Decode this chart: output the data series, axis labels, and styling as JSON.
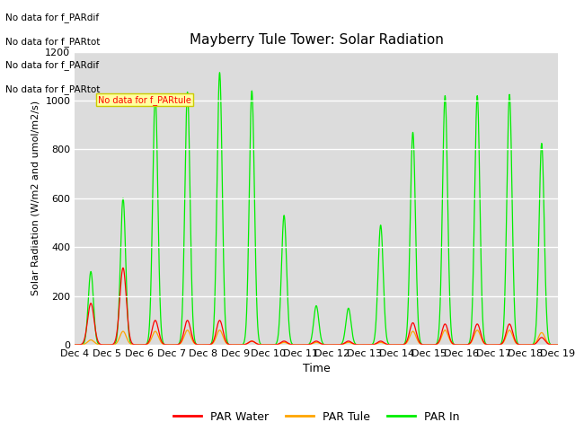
{
  "title": "Mayberry Tule Tower: Solar Radiation",
  "ylabel": "Solar Radiation (W/m2 and umol/m2/s)",
  "xlabel": "Time",
  "ylim": [
    0,
    1200
  ],
  "yticks": [
    0,
    200,
    400,
    600,
    800,
    1000,
    1200
  ],
  "background_color": "#dcdcdc",
  "no_data_texts": [
    "No data for f_PARdif",
    "No data for f_PARtot",
    "No data for f_PARdif",
    "No data for f_PARtot"
  ],
  "tooltip_text": "No data for f_PARtule",
  "legend_entries": [
    "PAR Water",
    "PAR Tule",
    "PAR In"
  ],
  "legend_colors": [
    "#ff0000",
    "#ffa500",
    "#00ee00"
  ],
  "x_tick_labels": [
    "Dec 4",
    "Dec 5",
    "Dec 6",
    "Dec 7",
    "Dec 8",
    "Dec 9",
    "Dec 10",
    "Dec 11",
    "Dec 12",
    "Dec 13",
    "Dec 14",
    "Dec 15",
    "Dec 16",
    "Dec 17",
    "Dec 18",
    "Dec 19"
  ],
  "par_in_day_peaks": {
    "4": 300,
    "5": 600,
    "6": 1025,
    "7": 1035,
    "8": 1115,
    "9": 1040,
    "10": 530,
    "11": 160,
    "12": 150,
    "13": 490,
    "14": 870,
    "15": 1020,
    "16": 1020,
    "17": 1025,
    "18": 825
  },
  "par_water_day_peaks": {
    "4": 170,
    "5": 315,
    "6": 100,
    "7": 100,
    "8": 100,
    "9": 15,
    "10": 15,
    "11": 15,
    "12": 15,
    "13": 15,
    "14": 90,
    "15": 85,
    "16": 85,
    "17": 85,
    "18": 30
  },
  "par_tule_day_peaks": {
    "4": 20,
    "5": 55,
    "6": 55,
    "7": 60,
    "8": 60,
    "9": 15,
    "10": 10,
    "11": 10,
    "12": 10,
    "13": 10,
    "14": 55,
    "15": 60,
    "16": 60,
    "17": 60,
    "18": 50
  },
  "par_in_sigma": 0.08,
  "par_small_sigma": 0.1,
  "xlim": [
    4,
    19
  ]
}
